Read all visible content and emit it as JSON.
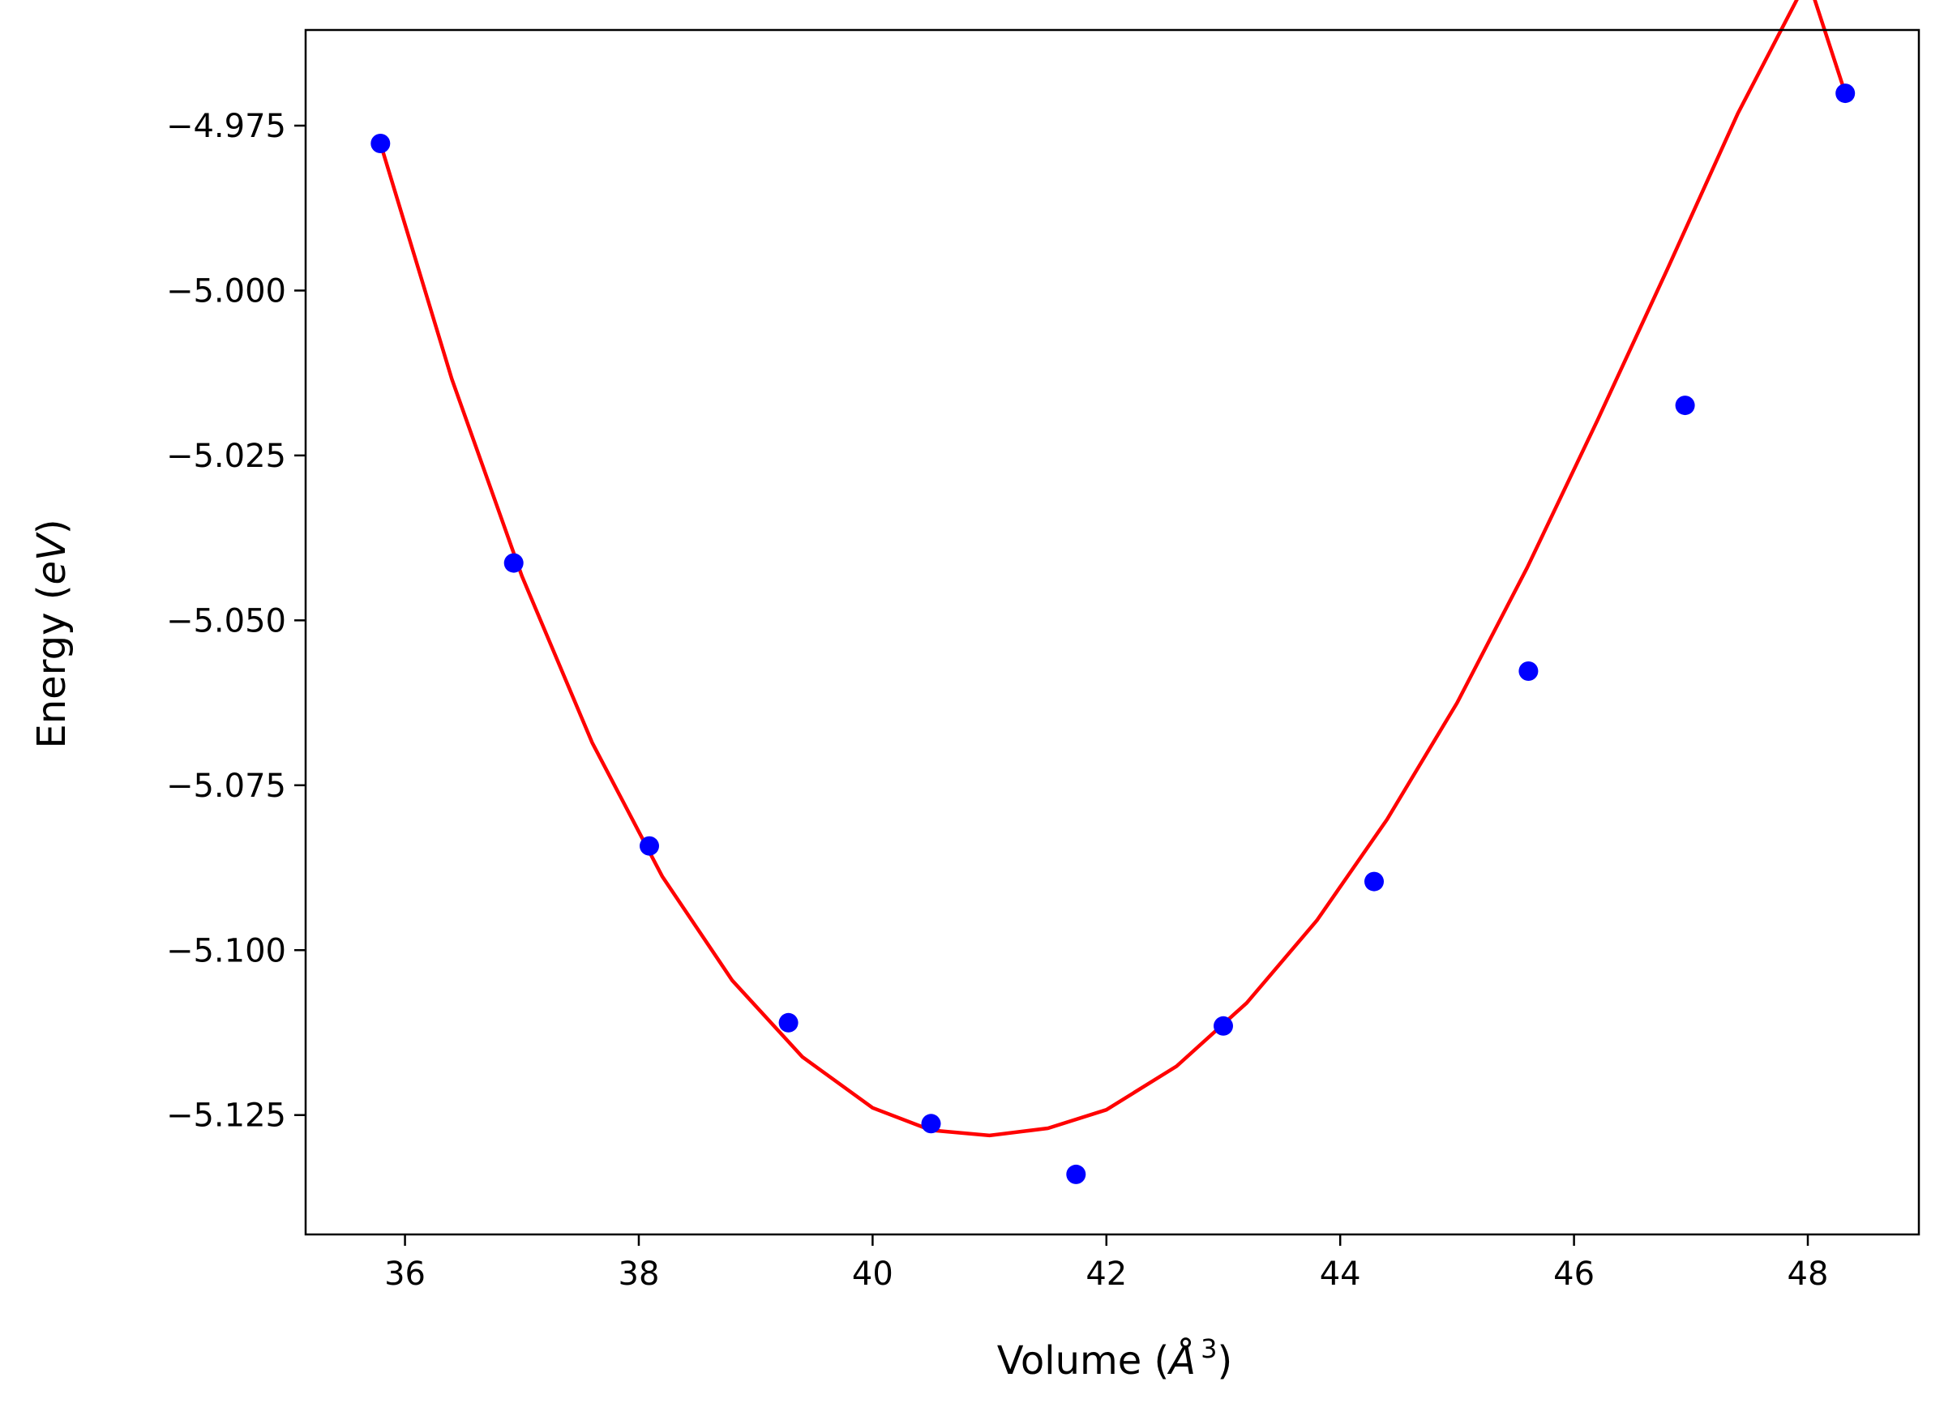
{
  "chart_data": {
    "type": "scatter",
    "title": "",
    "xlabel": "Volume (Å³)",
    "xlabel_parts": {
      "prefix": "Volume (",
      "unit": "Å",
      "exponent": "3",
      "suffix": ")"
    },
    "ylabel": "Energy (eV)",
    "ylabel_parts": {
      "prefix": "Energy (",
      "unit": "eV",
      "suffix": ")"
    },
    "xlim": [
      35.15,
      48.95
    ],
    "ylim": [
      -5.1431,
      -4.9605
    ],
    "xticks": [
      36,
      38,
      40,
      42,
      44,
      46,
      48
    ],
    "xtick_labels": [
      "36",
      "38",
      "40",
      "42",
      "44",
      "46",
      "48"
    ],
    "yticks": [
      -4.975,
      -5.0,
      -5.025,
      -5.05,
      -5.075,
      -5.1,
      -5.125
    ],
    "ytick_labels": [
      "−4.975",
      "−5.000",
      "−5.025",
      "−5.050",
      "−5.075",
      "−5.100",
      "−5.125"
    ],
    "grid": false,
    "series": [
      {
        "kind": "points",
        "color": "#0000ff",
        "x": [
          35.79,
          36.93,
          38.09,
          39.28,
          40.5,
          41.74,
          43.0,
          44.29,
          45.61,
          46.95,
          48.32
        ],
        "y": [
          -4.9777,
          -5.0413,
          -5.0842,
          -5.111,
          -5.1263,
          -5.134,
          -5.1115,
          -5.0896,
          -5.0577,
          -5.0174,
          -4.9701
        ]
      },
      {
        "kind": "fit-curve",
        "color": "#ff0000",
        "x": [
          35.79,
          36.4,
          37.0,
          37.6,
          38.2,
          38.8,
          39.4,
          40.0,
          40.5,
          41.0,
          41.5,
          42.0,
          42.6,
          43.2,
          43.8,
          44.4,
          45.0,
          45.6,
          46.2,
          46.8,
          47.4,
          48.0,
          48.32
        ],
        "y": [
          -4.9777,
          -5.0134,
          -5.0433,
          -5.0685,
          -5.0888,
          -5.1046,
          -5.1162,
          -5.1239,
          -5.1273,
          -5.1281,
          -5.127,
          -5.1242,
          -5.1176,
          -5.108,
          -5.0955,
          -5.0802,
          -5.0625,
          -5.042,
          -5.0197,
          -4.9967,
          -4.9732,
          -4.9527,
          -4.9701
        ]
      }
    ]
  }
}
